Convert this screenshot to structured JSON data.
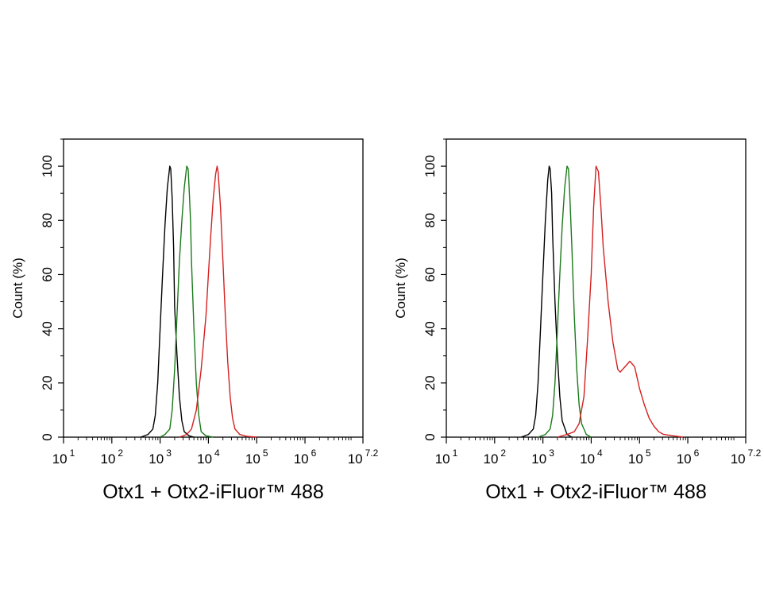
{
  "chart_data": [
    {
      "type": "line",
      "xlabel": "Otx1 + Otx2-iFluor™ 488",
      "ylabel": "Count  (%)",
      "xscale": "log",
      "xlim": [
        1,
        7.2
      ],
      "ylim": [
        0,
        110
      ],
      "xticks": [
        {
          "base": "10",
          "exp": "1"
        },
        {
          "base": "10",
          "exp": "2"
        },
        {
          "base": "10",
          "exp": "3"
        },
        {
          "base": "10",
          "exp": "4"
        },
        {
          "base": "10",
          "exp": "5"
        },
        {
          "base": "10",
          "exp": "6"
        },
        {
          "base": "10",
          "exp": "7.2"
        }
      ],
      "yticks": [
        "0",
        "20",
        "40",
        "60",
        "80",
        "100"
      ],
      "series": [
        {
          "color": "#000000",
          "x": [
            2.6,
            2.75,
            2.85,
            2.9,
            2.95,
            3.0,
            3.05,
            3.1,
            3.15,
            3.2,
            3.22,
            3.25,
            3.28,
            3.3,
            3.35,
            3.4,
            3.45,
            3.5,
            3.6,
            3.7
          ],
          "y": [
            0,
            1,
            3,
            8,
            20,
            40,
            60,
            78,
            92,
            100,
            99,
            88,
            70,
            48,
            30,
            15,
            6,
            2,
            0.5,
            0
          ]
        },
        {
          "color": "#1a7a1a",
          "x": [
            3.0,
            3.1,
            3.2,
            3.25,
            3.3,
            3.35,
            3.4,
            3.45,
            3.5,
            3.55,
            3.58,
            3.6,
            3.63,
            3.65,
            3.7,
            3.75,
            3.8,
            3.85,
            3.95,
            4.1
          ],
          "y": [
            0,
            1,
            3,
            10,
            25,
            45,
            65,
            80,
            92,
            100,
            99,
            92,
            80,
            65,
            40,
            20,
            8,
            2,
            0.5,
            0
          ]
        },
        {
          "color": "#d42020",
          "x": [
            3.4,
            3.55,
            3.65,
            3.75,
            3.85,
            3.95,
            4.0,
            4.05,
            4.1,
            4.15,
            4.18,
            4.2,
            4.25,
            4.3,
            4.35,
            4.4,
            4.45,
            4.5,
            4.55,
            4.65,
            4.8,
            5.0
          ],
          "y": [
            0,
            1,
            3,
            10,
            25,
            45,
            60,
            75,
            88,
            97,
            100,
            98,
            85,
            65,
            45,
            28,
            15,
            7,
            3,
            1,
            0.3,
            0
          ]
        }
      ]
    },
    {
      "type": "line",
      "xlabel": "Otx1 + Otx2-iFluor™ 488",
      "ylabel": "Count  (%)",
      "xscale": "log",
      "xlim": [
        1,
        7.2
      ],
      "ylim": [
        0,
        110
      ],
      "xticks": [
        {
          "base": "10",
          "exp": "1"
        },
        {
          "base": "10",
          "exp": "2"
        },
        {
          "base": "10",
          "exp": "3"
        },
        {
          "base": "10",
          "exp": "4"
        },
        {
          "base": "10",
          "exp": "5"
        },
        {
          "base": "10",
          "exp": "6"
        },
        {
          "base": "10",
          "exp": "7.2"
        }
      ],
      "yticks": [
        "0",
        "20",
        "40",
        "60",
        "80",
        "100"
      ],
      "series": [
        {
          "color": "#000000",
          "x": [
            2.55,
            2.7,
            2.8,
            2.85,
            2.9,
            2.95,
            3.0,
            3.05,
            3.1,
            3.13,
            3.15,
            3.18,
            3.2,
            3.25,
            3.3,
            3.35,
            3.4,
            3.5,
            3.6
          ],
          "y": [
            0,
            1,
            3,
            8,
            20,
            40,
            60,
            80,
            95,
            100,
            99,
            90,
            75,
            50,
            30,
            15,
            6,
            1,
            0
          ]
        },
        {
          "color": "#1a7a1a",
          "x": [
            2.9,
            3.05,
            3.15,
            3.2,
            3.25,
            3.3,
            3.35,
            3.4,
            3.45,
            3.5,
            3.53,
            3.55,
            3.6,
            3.65,
            3.7,
            3.75,
            3.8,
            3.9,
            4.0
          ],
          "y": [
            0,
            1,
            3,
            8,
            20,
            40,
            60,
            78,
            92,
            100,
            99,
            92,
            70,
            45,
            25,
            12,
            5,
            1,
            0
          ]
        },
        {
          "color": "#d42020",
          "x": [
            3.3,
            3.5,
            3.65,
            3.75,
            3.85,
            3.92,
            4.0,
            4.05,
            4.1,
            4.15,
            4.2,
            4.25,
            4.35,
            4.45,
            4.55,
            4.6,
            4.7,
            4.8,
            4.9,
            4.95,
            5.0,
            5.1,
            5.2,
            5.3,
            5.4,
            5.5,
            5.7,
            5.9
          ],
          "y": [
            0,
            1,
            2,
            5,
            15,
            35,
            60,
            85,
            100,
            98,
            85,
            70,
            50,
            35,
            25,
            24,
            26,
            28,
            26,
            22,
            18,
            12,
            7,
            4,
            2,
            1,
            0.5,
            0
          ]
        }
      ]
    }
  ]
}
